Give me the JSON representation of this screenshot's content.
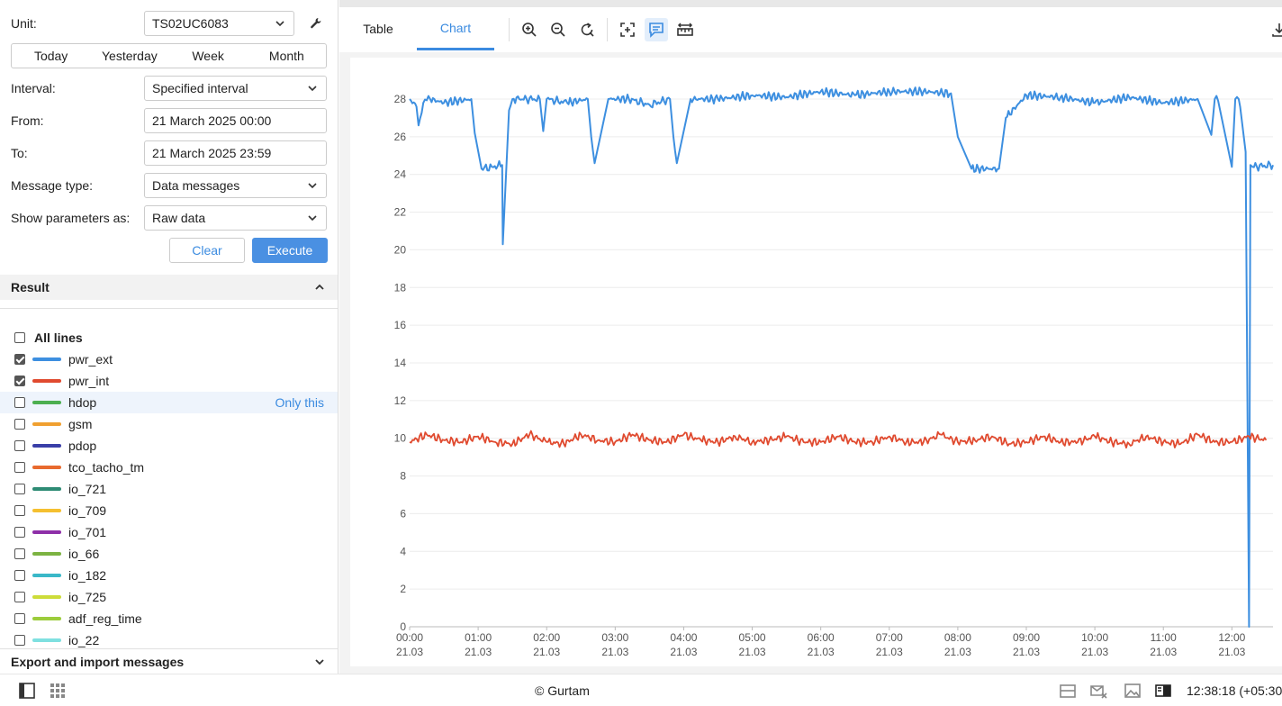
{
  "form": {
    "unit_label": "Unit:",
    "unit_value": "TS02UC6083",
    "periods": [
      "Today",
      "Yesterday",
      "Week",
      "Month"
    ],
    "interval_label": "Interval:",
    "interval_value": "Specified interval",
    "from_label": "From:",
    "from_value": "21 March 2025 00:00",
    "to_label": "To:",
    "to_value": "21 March 2025 23:59",
    "msgtype_label": "Message type:",
    "msgtype_value": "Data messages",
    "showas_label": "Show parameters as:",
    "showas_value": "Raw data",
    "clear_label": "Clear",
    "execute_label": "Execute"
  },
  "result": {
    "title": "Result",
    "all_lines_label": "All lines",
    "only_this_label": "Only this",
    "lines": [
      {
        "name": "pwr_ext",
        "color": "#3d8fe0",
        "checked": true
      },
      {
        "name": "pwr_int",
        "color": "#e04a2f",
        "checked": true
      },
      {
        "name": "hdop",
        "color": "#4caf50",
        "checked": false
      },
      {
        "name": "gsm",
        "color": "#f0a030",
        "checked": false
      },
      {
        "name": "pdop",
        "color": "#3a3fa8",
        "checked": false
      },
      {
        "name": "tco_tacho_tm",
        "color": "#e86a2e",
        "checked": false
      },
      {
        "name": "io_721",
        "color": "#2e8b74",
        "checked": false
      },
      {
        "name": "io_709",
        "color": "#f5c030",
        "checked": false
      },
      {
        "name": "io_701",
        "color": "#8e2fa8",
        "checked": false
      },
      {
        "name": "io_66",
        "color": "#7cb342",
        "checked": false
      },
      {
        "name": "io_182",
        "color": "#3ab8c8",
        "checked": false
      },
      {
        "name": "io_725",
        "color": "#cddc39",
        "checked": false
      },
      {
        "name": "adf_reg_time",
        "color": "#9ccc3c",
        "checked": false
      },
      {
        "name": "io_22",
        "color": "#7fe0e0",
        "checked": false
      }
    ]
  },
  "export": {
    "title": "Export and import messages"
  },
  "tabs": {
    "table": "Table",
    "chart": "Chart"
  },
  "toolbar_icons": [
    "zoom-in-icon",
    "zoom-out-icon",
    "reset-zoom-icon",
    "fit-icon",
    "comment-icon",
    "ruler-icon",
    "download-icon"
  ],
  "chart_data": {
    "type": "line",
    "title": "",
    "xlabel": "",
    "ylabel": "",
    "ylim": [
      0,
      28
    ],
    "yticks": [
      "0",
      "2",
      "4",
      "6",
      "8",
      "10",
      "12",
      "14",
      "16",
      "18",
      "20",
      "22",
      "24",
      "26",
      "28"
    ],
    "x_tick_times": [
      "00:00",
      "01:00",
      "02:00",
      "03:00",
      "04:00",
      "05:00",
      "06:00",
      "07:00",
      "08:00",
      "09:00",
      "10:00",
      "11:00",
      "12:00"
    ],
    "x_tick_dates": [
      "21.03",
      "21.03",
      "21.03",
      "21.03",
      "21.03",
      "21.03",
      "21.03",
      "21.03",
      "21.03",
      "21.03",
      "21.03",
      "21.03",
      "21.03"
    ],
    "xlim_hours": [
      0,
      12.6
    ],
    "series": [
      {
        "color": "#3d8fe0",
        "x": [
          0,
          0.1,
          0.13,
          0.2,
          0.3,
          0.5,
          0.9,
          0.95,
          1.05,
          1.2,
          1.35,
          1.36,
          1.45,
          1.5,
          1.6,
          1.9,
          1.95,
          2.0,
          2.3,
          2.6,
          2.65,
          2.7,
          2.9,
          3.2,
          3.5,
          3.8,
          3.85,
          3.9,
          4.1,
          4.5,
          5.0,
          5.5,
          6.0,
          6.5,
          7.0,
          7.5,
          7.9,
          8.0,
          8.2,
          8.6,
          8.7,
          9.0,
          9.5,
          10.0,
          10.5,
          11.0,
          11.5,
          11.7,
          11.75,
          11.8,
          12.0,
          12.05,
          12.1,
          12.12,
          12.2,
          12.25,
          12.27,
          12.3,
          12.6
        ],
        "values": [
          28,
          27.6,
          26.6,
          27.8,
          28,
          27.8,
          28,
          26.2,
          24.3,
          24.4,
          24.5,
          20.3,
          27.4,
          28,
          28,
          28,
          26.3,
          28,
          27.8,
          28,
          26,
          24.6,
          28,
          28,
          27.7,
          28,
          26,
          24.6,
          28,
          28,
          28.2,
          28.1,
          28.4,
          28.2,
          28.4,
          28.4,
          28.3,
          26,
          24.3,
          24.3,
          27,
          28.2,
          28.1,
          27.8,
          28.1,
          27.8,
          28,
          26.1,
          28,
          27.9,
          24.4,
          28,
          28,
          27.6,
          25.2,
          0,
          24.5,
          24.4,
          24.5
        ]
      },
      {
        "color": "#e04a2f",
        "x": [
          0,
          0.25,
          0.5,
          0.75,
          1.0,
          1.25,
          1.5,
          1.75,
          2.0,
          2.25,
          2.5,
          2.75,
          3.0,
          3.25,
          3.5,
          3.75,
          4.0,
          4.25,
          4.5,
          4.75,
          5.0,
          5.25,
          5.5,
          5.75,
          6.0,
          6.25,
          6.5,
          6.75,
          7.0,
          7.25,
          7.5,
          7.75,
          8.0,
          8.25,
          8.5,
          8.75,
          9.0,
          9.25,
          9.5,
          9.75,
          10.0,
          10.25,
          10.5,
          10.75,
          11.0,
          11.25,
          11.5,
          11.75,
          12.0,
          12.25,
          12.5
        ],
        "values": [
          9.8,
          10.2,
          9.9,
          9.8,
          10.1,
          9.8,
          9.7,
          10.2,
          9.8,
          9.7,
          10.2,
          9.9,
          9.8,
          10.2,
          9.9,
          9.8,
          10.2,
          9.9,
          9.8,
          10.1,
          9.8,
          9.9,
          10.1,
          9.8,
          9.8,
          10.1,
          9.8,
          9.8,
          10.1,
          9.8,
          9.8,
          10.2,
          9.8,
          9.9,
          10.1,
          9.7,
          9.8,
          10.1,
          9.8,
          9.8,
          10.1,
          9.8,
          9.7,
          10.1,
          9.8,
          9.7,
          10.2,
          9.8,
          9.8,
          10.1,
          9.9
        ]
      }
    ]
  },
  "status": {
    "copyright": "© Gurtam",
    "clock": "12:38:18 (+05:30)"
  }
}
